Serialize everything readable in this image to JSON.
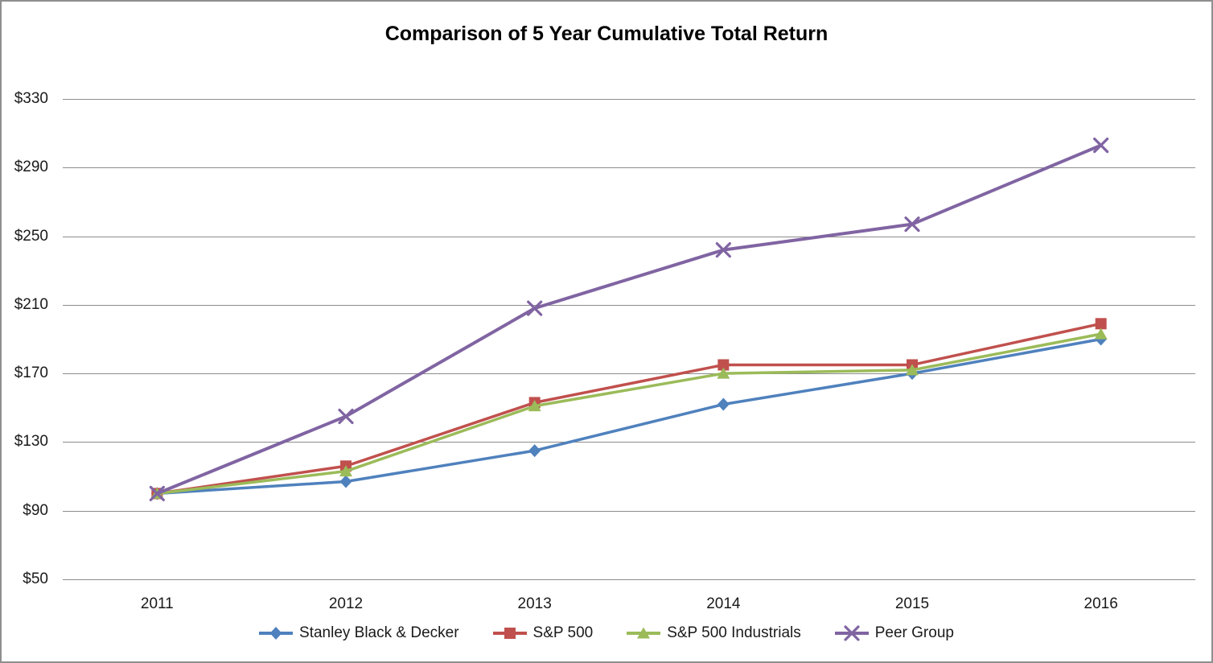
{
  "title": "Comparison of 5 Year Cumulative Total Return",
  "chart_data": {
    "type": "line",
    "title": "Comparison of 5 Year Cumulative Total Return",
    "categories": [
      "2011",
      "2012",
      "2013",
      "2014",
      "2015",
      "2016"
    ],
    "series": [
      {
        "name": "Stanley Black & Decker",
        "marker": "diamond",
        "color": "#4F81BD",
        "values": [
          100,
          107,
          125,
          152,
          170,
          190
        ]
      },
      {
        "name": "S&P 500",
        "marker": "square",
        "color": "#C0504D",
        "values": [
          100,
          116,
          153,
          175,
          175,
          199
        ]
      },
      {
        "name": "S&P 500 Industrials",
        "marker": "triangle",
        "color": "#9BBB59",
        "values": [
          100,
          113,
          151,
          170,
          172,
          193
        ]
      },
      {
        "name": "Peer Group",
        "marker": "x",
        "color": "#8064A2",
        "values": [
          100,
          145,
          208,
          242,
          257,
          303
        ]
      }
    ],
    "y_axis": {
      "min": 50,
      "max": 330,
      "tick_step": 40,
      "tick_labels": [
        "$50",
        "$90",
        "$130",
        "$170",
        "$210",
        "$250",
        "$290",
        "$330"
      ]
    },
    "x_axis": {
      "labels": [
        "2011",
        "2012",
        "2013",
        "2014",
        "2015",
        "2016"
      ]
    },
    "legend_position": "bottom",
    "grid": "horizontal",
    "gridline_color": "#8c8c8c",
    "background_color": "#ffffff",
    "border_color": "#8f8f8f"
  }
}
